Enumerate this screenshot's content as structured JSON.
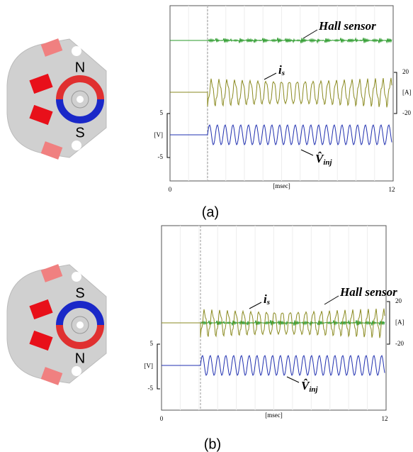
{
  "panels": [
    {
      "pole_top": "N",
      "pole_bottom": "S",
      "hall_label": "Hall sensor",
      "current_label": "i",
      "current_sub": "s",
      "voltage_label": "V̂",
      "voltage_sub": "inj",
      "left_ticks": [
        "5",
        "-5"
      ],
      "left_unit": "[V]",
      "right_ticks": [
        "20",
        "-20"
      ],
      "right_unit": "[A]",
      "x_ticks": [
        "0",
        "12"
      ],
      "x_unit": "[msec]",
      "caption": "(a)"
    },
    {
      "pole_top": "S",
      "pole_bottom": "N",
      "hall_label": "Hall sensor",
      "current_label": "i",
      "current_sub": "s",
      "voltage_label": "V̂",
      "voltage_sub": "inj",
      "left_ticks": [
        "5",
        "-5"
      ],
      "left_unit": "[V]",
      "right_ticks": [
        "20",
        "-20"
      ],
      "right_unit": "[A]",
      "x_ticks": [
        "0",
        "12"
      ],
      "x_unit": "[msec]",
      "caption": "(b)"
    }
  ]
}
